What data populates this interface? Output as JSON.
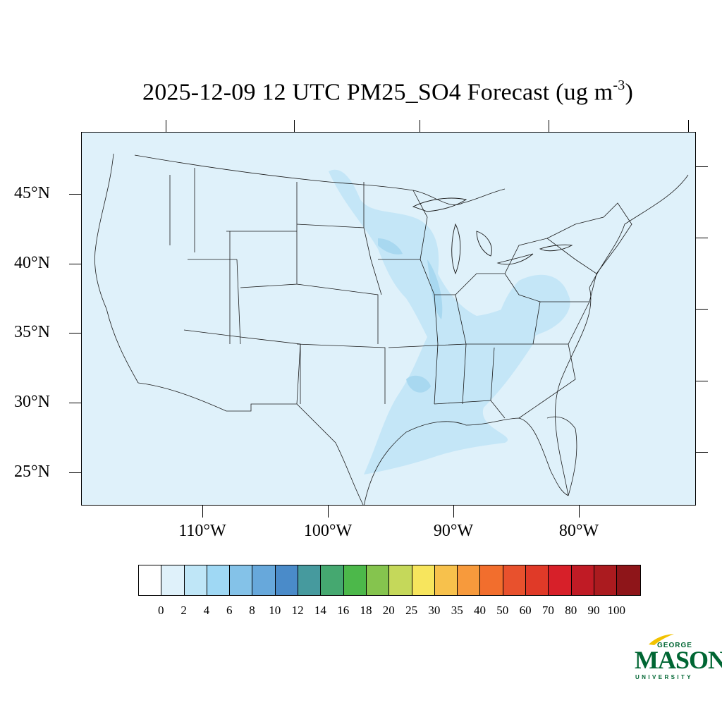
{
  "title": {
    "main": "2025-12-09 12 UTC PM25_SO4 Forecast (ug m",
    "superscript": "-3",
    "close": ")"
  },
  "map": {
    "background_color": "#dff1fa",
    "lat_labels": [
      "45°N",
      "40°N",
      "35°N",
      "30°N",
      "25°N"
    ],
    "lon_labels": [
      "110°W",
      "100°W",
      "90°W",
      "80°W"
    ]
  },
  "colorbar": {
    "colors": [
      "#ffffff",
      "#dff1fa",
      "#bfe6f7",
      "#9fd8f4",
      "#84c2e8",
      "#67a8db",
      "#4a8bc9",
      "#469a9e",
      "#45a870",
      "#4cb84a",
      "#85c44e",
      "#c5d85a",
      "#f7e55d",
      "#f7c14c",
      "#f79a3c",
      "#f26e2d",
      "#e8512d",
      "#e03a28",
      "#d72029",
      "#c01b25",
      "#ab1b1f",
      "#8e1519"
    ],
    "labels": [
      "0",
      "2",
      "4",
      "6",
      "8",
      "10",
      "12",
      "14",
      "16",
      "18",
      "20",
      "25",
      "30",
      "35",
      "40",
      "50",
      "60",
      "70",
      "80",
      "90",
      "100"
    ]
  },
  "logo": {
    "top": "GEORGE",
    "main": "MASON",
    "bottom": "UNIVERSITY",
    "color": "#006633",
    "accent": "#f2c200"
  }
}
